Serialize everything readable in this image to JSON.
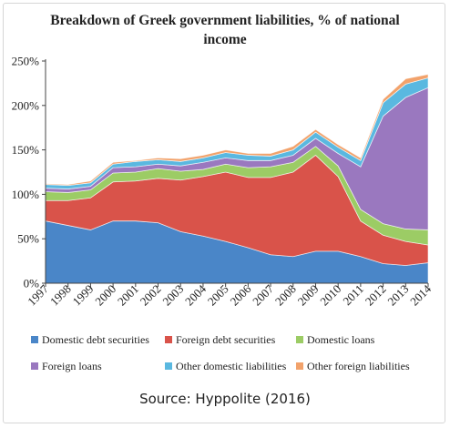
{
  "caption": "Source: Hyppolite (2016)",
  "chart_data": {
    "type": "area",
    "stacked": true,
    "title_lines": [
      "Breakdown of Greek government liabilities, % of national",
      "income"
    ],
    "x": [
      "1997",
      "1998",
      "1999",
      "2000",
      "2001",
      "2002",
      "2003",
      "2004",
      "2005",
      "2006",
      "2007",
      "2008",
      "2009",
      "2010",
      "2011",
      "2012",
      "2013",
      "2014"
    ],
    "y_ticks": [
      "0%",
      "50%",
      "100%",
      "150%",
      "200%",
      "250%"
    ],
    "ylim": [
      0,
      250
    ],
    "grid": false,
    "legend_position": "bottom",
    "series": [
      {
        "name": "Domestic debt securities",
        "color": "#4a86c8",
        "values": [
          70,
          65,
          60,
          70,
          70,
          68,
          58,
          53,
          47,
          40,
          32,
          30,
          36,
          36,
          30,
          22,
          20,
          23
        ]
      },
      {
        "name": "Foreign debt securities",
        "color": "#d9534a",
        "values": [
          23,
          28,
          36,
          44,
          45,
          50,
          58,
          67,
          78,
          79,
          87,
          95,
          108,
          84,
          40,
          32,
          27,
          20
        ]
      },
      {
        "name": "Domestic loans",
        "color": "#9ccc65",
        "values": [
          10,
          9,
          9,
          10,
          10,
          11,
          10,
          8,
          9,
          11,
          12,
          11,
          10,
          12,
          13,
          13,
          14,
          17
        ]
      },
      {
        "name": "Foreign loans",
        "color": "#9a78bf",
        "values": [
          4,
          4,
          4,
          6,
          6,
          5,
          6,
          8,
          7,
          8,
          7,
          8,
          9,
          14,
          48,
          121,
          148,
          160
        ]
      },
      {
        "name": "Other domestic liabilities",
        "color": "#5ab8e0",
        "values": [
          4,
          4,
          4,
          4,
          6,
          5,
          5,
          5,
          6,
          6,
          5,
          6,
          7,
          7,
          7,
          15,
          15,
          11
        ]
      },
      {
        "name": "Other foreign liabilities",
        "color": "#f2a26b",
        "values": [
          1,
          1,
          2,
          2,
          1,
          2,
          3,
          3,
          3,
          2,
          3,
          4,
          3,
          3,
          3,
          4,
          6,
          4
        ]
      }
    ]
  }
}
